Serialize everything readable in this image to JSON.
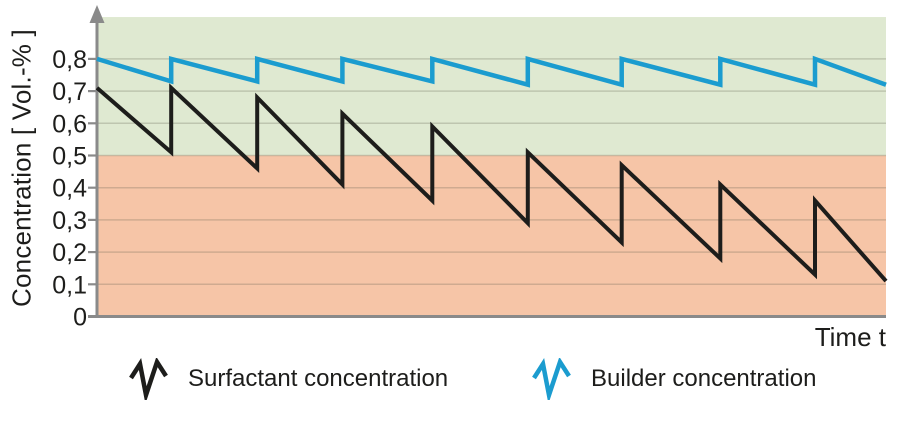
{
  "chart": {
    "y_axis_title": "Concentration [ Vol.-% ]",
    "x_axis_title": "Time t",
    "y_ticks": [
      "0",
      "0,1",
      "0,2",
      "0,3",
      "0,4",
      "0,5",
      "0,6",
      "0,7",
      "0,8"
    ]
  },
  "legend": {
    "items": [
      {
        "label": "Surfactant concentration",
        "color": "#1d1d1b"
      },
      {
        "label": "Builder concentration",
        "color": "#1b9ccf"
      }
    ]
  },
  "colors": {
    "zone_upper_green": "#dfe9d1",
    "zone_lower_orange": "#f6c5a7",
    "axis_gray": "#8a8a8a",
    "gridline": "rgba(90,90,75,0.25)",
    "surfactant_line": "#1d1d1b",
    "builder_line": "#1b9ccf",
    "text": "#1d1d1b"
  },
  "chart_data": {
    "type": "line",
    "title": "",
    "xlabel": "Time t",
    "ylabel": "Concentration [ Vol.-% ]",
    "ylim": [
      0,
      0.93
    ],
    "x_range": [
      0,
      100
    ],
    "y_tick_step": 0.1,
    "grid": true,
    "legend_position": "bottom",
    "background_zones": [
      {
        "from": 0.5,
        "to": 0.93,
        "color": "#dfe9d1"
      },
      {
        "from": 0.0,
        "to": 0.5,
        "color": "#f6c5a7"
      }
    ],
    "series": [
      {
        "name": "Surfactant concentration",
        "key": "surfactant-line",
        "color": "#1d1d1b",
        "stroke_width": 4,
        "shape": "sawtooth-decaying",
        "points": [
          [
            0,
            0.71
          ],
          [
            9.4,
            0.51
          ],
          [
            9.4,
            0.71
          ],
          [
            20.3,
            0.46
          ],
          [
            20.3,
            0.68
          ],
          [
            31.1,
            0.41
          ],
          [
            31.1,
            0.63
          ],
          [
            42.5,
            0.36
          ],
          [
            42.5,
            0.59
          ],
          [
            54.6,
            0.29
          ],
          [
            54.6,
            0.51
          ],
          [
            66.5,
            0.23
          ],
          [
            66.5,
            0.47
          ],
          [
            79.0,
            0.18
          ],
          [
            79.0,
            0.41
          ],
          [
            91.0,
            0.13
          ],
          [
            91.0,
            0.36
          ],
          [
            100,
            0.11
          ]
        ]
      },
      {
        "name": "Builder concentration",
        "key": "builder-line",
        "color": "#1b9ccf",
        "stroke_width": 4.5,
        "shape": "sawtooth-steady",
        "points": [
          [
            0,
            0.8
          ],
          [
            9.4,
            0.73
          ],
          [
            9.4,
            0.8
          ],
          [
            20.3,
            0.73
          ],
          [
            20.3,
            0.8
          ],
          [
            31.1,
            0.73
          ],
          [
            31.1,
            0.8
          ],
          [
            42.5,
            0.73
          ],
          [
            42.5,
            0.8
          ],
          [
            54.6,
            0.72
          ],
          [
            54.6,
            0.8
          ],
          [
            66.5,
            0.72
          ],
          [
            66.5,
            0.8
          ],
          [
            79.0,
            0.72
          ],
          [
            79.0,
            0.8
          ],
          [
            91.0,
            0.72
          ],
          [
            91.0,
            0.8
          ],
          [
            100,
            0.72
          ]
        ]
      }
    ]
  }
}
